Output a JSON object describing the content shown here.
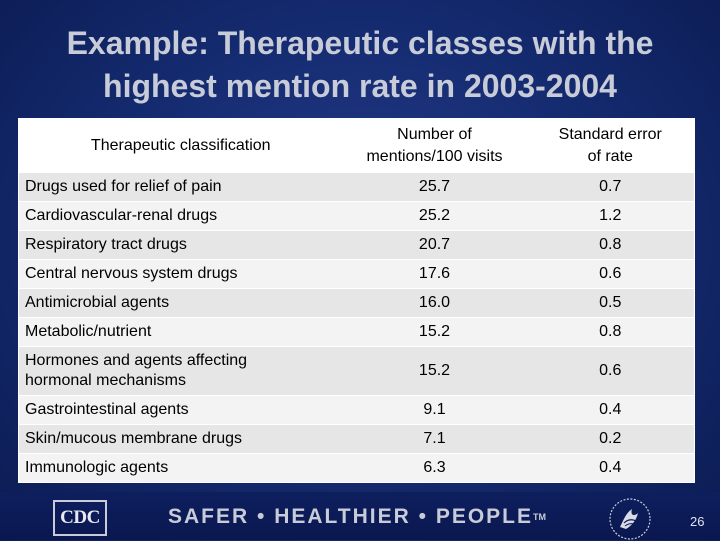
{
  "title": {
    "line1": "Example: Therapeutic classes with the",
    "line2": "highest mention rate in 2003-2004"
  },
  "table": {
    "headers": {
      "col1": "Therapeutic classification",
      "col2_line1": "Number of",
      "col2_line2": "mentions/100 visits",
      "col3_line1": "Standard error",
      "col3_line2": "of rate"
    },
    "rows": [
      {
        "classification": "Drugs used for relief of pain",
        "mentions": "25.7",
        "se": "0.7"
      },
      {
        "classification": "Cardiovascular-renal drugs",
        "mentions": "25.2",
        "se": "1.2"
      },
      {
        "classification": "Respiratory tract drugs",
        "mentions": "20.7",
        "se": "0.8"
      },
      {
        "classification": "Central nervous system drugs",
        "mentions": "17.6",
        "se": "0.6"
      },
      {
        "classification": "Antimicrobial agents",
        "mentions": "16.0",
        "se": "0.5"
      },
      {
        "classification": "Metabolic/nutrient",
        "mentions": "15.2",
        "se": "0.8"
      },
      {
        "classification_line1": "Hormones and agents affecting",
        "classification_line2": "hormonal mechanisms",
        "mentions": "15.2",
        "se": "0.6"
      },
      {
        "classification": "Gastrointestinal agents",
        "mentions": "9.1",
        "se": "0.4"
      },
      {
        "classification": "Skin/mucous membrane drugs",
        "mentions": "7.1",
        "se": "0.2"
      },
      {
        "classification": "Immunologic agents",
        "mentions": "6.3",
        "se": "0.4"
      }
    ]
  },
  "footer": {
    "cdc_logo": "CDC",
    "tagline": "SAFER • HEALTHIER • PEOPLE",
    "trademark": "TM",
    "hhs_logo_icon": "hhs-eagle-icon",
    "page_number": "26"
  },
  "colors": {
    "background": "#142a6e",
    "title_text": "#c8ccd8",
    "row_odd": "#e6e6e6",
    "row_even": "#f3f3f3"
  }
}
